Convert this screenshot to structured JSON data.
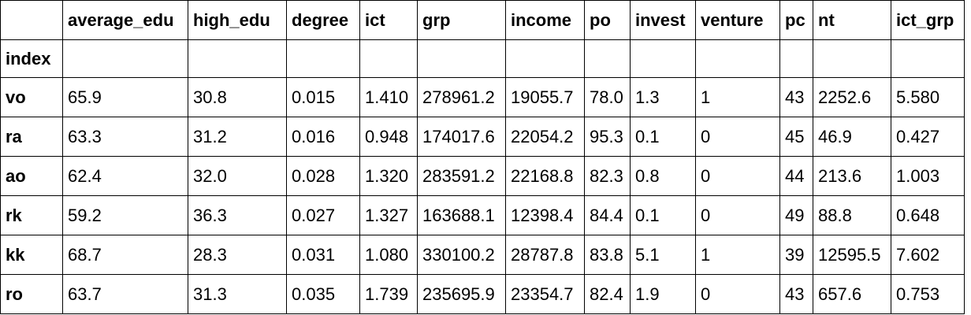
{
  "table": {
    "columns": [
      "average_edu",
      "high_edu",
      "degree",
      "ict",
      "grp",
      "income",
      "po",
      "invest",
      "venture",
      "pc",
      "nt",
      "ict_grp"
    ],
    "index_name": "index",
    "rows": [
      {
        "index": "vo",
        "values": [
          "65.9",
          "30.8",
          "0.015",
          "1.410",
          "278961.2",
          "19055.7",
          "78.0",
          "1.3",
          "1",
          "43",
          "2252.6",
          "5.580"
        ]
      },
      {
        "index": "ra",
        "values": [
          "63.3",
          "31.2",
          "0.016",
          "0.948",
          "174017.6",
          "22054.2",
          "95.3",
          "0.1",
          "0",
          "45",
          "46.9",
          "0.427"
        ]
      },
      {
        "index": "ao",
        "values": [
          "62.4",
          "32.0",
          "0.028",
          "1.320",
          "283591.2",
          "22168.8",
          "82.3",
          "0.8",
          "0",
          "44",
          "213.6",
          "1.003"
        ]
      },
      {
        "index": "rk",
        "values": [
          "59.2",
          "36.3",
          "0.027",
          "1.327",
          "163688.1",
          "12398.4",
          "84.4",
          "0.1",
          "0",
          "49",
          "88.8",
          "0.648"
        ]
      },
      {
        "index": "kk",
        "values": [
          "68.7",
          "28.3",
          "0.031",
          "1.080",
          "330100.2",
          "28787.8",
          "83.8",
          "5.1",
          "1",
          "39",
          "12595.5",
          "7.602"
        ]
      },
      {
        "index": "ro",
        "values": [
          "63.7",
          "31.3",
          "0.035",
          "1.739",
          "235695.9",
          "23354.7",
          "82.4",
          "1.9",
          "0",
          "43",
          "657.6",
          "0.753"
        ]
      }
    ]
  }
}
